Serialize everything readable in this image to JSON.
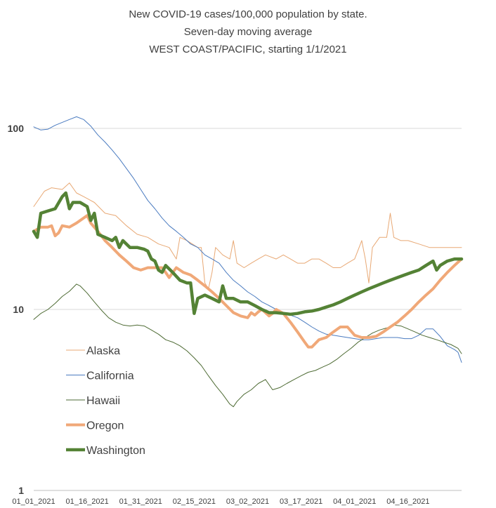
{
  "chart_data": {
    "type": "line",
    "title_lines": [
      "New COVID-19 cases/100,000 population by state.",
      "Seven-day moving average",
      "WEST COAST/PACIFIC, starting 1/1/2021"
    ],
    "y_scale": "log",
    "ylim": [
      1,
      100
    ],
    "y_ticks": [
      "1",
      "10",
      "100"
    ],
    "x_ticks": [
      "01_01_2021",
      "01_16_2021",
      "01_31_2021",
      "02_15_2021",
      "03_02_2021",
      "03_17_2021",
      "04_01_2021",
      "04_16_2021"
    ],
    "x_day_range": [
      0,
      120
    ],
    "grid": "horizontal",
    "legend_position": "left-bottom",
    "series": [
      {
        "name": "Alaska",
        "color": "#e8a874",
        "width": 1,
        "values": [
          [
            0,
            37
          ],
          [
            3,
            45
          ],
          [
            5,
            47
          ],
          [
            8,
            46
          ],
          [
            10,
            50
          ],
          [
            12,
            44
          ],
          [
            14,
            42
          ],
          [
            17,
            39
          ],
          [
            20,
            34
          ],
          [
            23,
            33
          ],
          [
            26,
            29
          ],
          [
            29,
            26
          ],
          [
            32,
            25
          ],
          [
            35,
            23
          ],
          [
            38,
            22
          ],
          [
            40,
            19
          ],
          [
            41,
            25
          ],
          [
            43,
            24
          ],
          [
            46,
            22
          ],
          [
            47,
            22
          ],
          [
            48,
            14
          ],
          [
            49,
            13
          ],
          [
            50,
            16
          ],
          [
            51,
            22
          ],
          [
            53,
            20
          ],
          [
            55,
            19
          ],
          [
            56,
            24
          ],
          [
            57,
            18
          ],
          [
            59,
            17
          ],
          [
            61,
            18
          ],
          [
            63,
            19
          ],
          [
            65,
            20
          ],
          [
            68,
            19
          ],
          [
            70,
            20
          ],
          [
            72,
            19
          ],
          [
            74,
            18
          ],
          [
            76,
            18
          ],
          [
            78,
            19
          ],
          [
            80,
            19
          ],
          [
            82,
            18
          ],
          [
            84,
            17
          ],
          [
            86,
            17
          ],
          [
            88,
            18
          ],
          [
            90,
            19
          ],
          [
            92,
            24
          ],
          [
            93,
            19
          ],
          [
            94,
            14
          ],
          [
            95,
            22
          ],
          [
            97,
            25
          ],
          [
            99,
            25
          ],
          [
            100,
            34
          ],
          [
            101,
            25
          ],
          [
            103,
            24
          ],
          [
            105,
            24
          ],
          [
            108,
            23
          ],
          [
            111,
            22
          ],
          [
            114,
            22
          ],
          [
            117,
            22
          ],
          [
            120,
            22
          ]
        ]
      },
      {
        "name": "California",
        "color": "#4a7bc0",
        "width": 1,
        "values": [
          [
            0,
            102
          ],
          [
            2,
            98
          ],
          [
            4,
            99
          ],
          [
            6,
            104
          ],
          [
            8,
            108
          ],
          [
            10,
            112
          ],
          [
            12,
            116
          ],
          [
            14,
            112
          ],
          [
            16,
            103
          ],
          [
            18,
            92
          ],
          [
            20,
            84
          ],
          [
            22,
            76
          ],
          [
            24,
            68
          ],
          [
            26,
            60
          ],
          [
            28,
            53
          ],
          [
            30,
            46
          ],
          [
            32,
            40
          ],
          [
            34,
            36
          ],
          [
            36,
            32
          ],
          [
            38,
            29
          ],
          [
            40,
            27
          ],
          [
            42,
            25
          ],
          [
            44,
            23
          ],
          [
            46,
            22
          ],
          [
            48,
            20
          ],
          [
            50,
            19
          ],
          [
            52,
            18
          ],
          [
            54,
            16
          ],
          [
            56,
            14.5
          ],
          [
            58,
            13.5
          ],
          [
            60,
            12.5
          ],
          [
            62,
            11.8
          ],
          [
            64,
            11
          ],
          [
            66,
            10.5
          ],
          [
            68,
            10
          ],
          [
            70,
            9.6
          ],
          [
            72,
            9.3
          ],
          [
            74,
            9
          ],
          [
            76,
            8.5
          ],
          [
            78,
            8
          ],
          [
            80,
            7.6
          ],
          [
            82,
            7.3
          ],
          [
            84,
            7.2
          ],
          [
            86,
            7.1
          ],
          [
            88,
            7
          ],
          [
            90,
            6.9
          ],
          [
            92,
            6.8
          ],
          [
            94,
            6.8
          ],
          [
            96,
            6.9
          ],
          [
            98,
            7
          ],
          [
            100,
            7
          ],
          [
            102,
            7
          ],
          [
            104,
            6.9
          ],
          [
            106,
            6.9
          ],
          [
            108,
            7.2
          ],
          [
            110,
            7.8
          ],
          [
            112,
            7.8
          ],
          [
            114,
            7.1
          ],
          [
            116,
            6.3
          ],
          [
            118,
            6
          ],
          [
            119,
            5.8
          ],
          [
            120,
            5.1
          ]
        ]
      },
      {
        "name": "Hawaii",
        "color": "#4e6b34",
        "width": 1,
        "values": [
          [
            0,
            8.8
          ],
          [
            2,
            9.5
          ],
          [
            4,
            10
          ],
          [
            6,
            10.8
          ],
          [
            8,
            11.8
          ],
          [
            10,
            12.6
          ],
          [
            12,
            13.8
          ],
          [
            13,
            13.5
          ],
          [
            15,
            12.3
          ],
          [
            17,
            11
          ],
          [
            19,
            9.9
          ],
          [
            21,
            9
          ],
          [
            23,
            8.5
          ],
          [
            25,
            8.2
          ],
          [
            27,
            8.1
          ],
          [
            29,
            8.2
          ],
          [
            31,
            8.1
          ],
          [
            33,
            7.7
          ],
          [
            35,
            7.3
          ],
          [
            37,
            6.8
          ],
          [
            39,
            6.6
          ],
          [
            41,
            6.3
          ],
          [
            43,
            5.9
          ],
          [
            45,
            5.4
          ],
          [
            47,
            4.9
          ],
          [
            49,
            4.3
          ],
          [
            51,
            3.8
          ],
          [
            53,
            3.4
          ],
          [
            55,
            3.0
          ],
          [
            56,
            2.9
          ],
          [
            57,
            3.1
          ],
          [
            59,
            3.4
          ],
          [
            61,
            3.6
          ],
          [
            63,
            3.9
          ],
          [
            65,
            4.1
          ],
          [
            67,
            3.6
          ],
          [
            69,
            3.7
          ],
          [
            71,
            3.9
          ],
          [
            73,
            4.1
          ],
          [
            75,
            4.3
          ],
          [
            77,
            4.5
          ],
          [
            79,
            4.6
          ],
          [
            81,
            4.8
          ],
          [
            83,
            5.0
          ],
          [
            85,
            5.3
          ],
          [
            87,
            5.7
          ],
          [
            89,
            6.1
          ],
          [
            91,
            6.6
          ],
          [
            93,
            7.0
          ],
          [
            95,
            7.4
          ],
          [
            97,
            7.7
          ],
          [
            99,
            7.9
          ],
          [
            101,
            8.2
          ],
          [
            103,
            8.1
          ],
          [
            105,
            7.8
          ],
          [
            107,
            7.5
          ],
          [
            109,
            7.2
          ],
          [
            111,
            7.0
          ],
          [
            113,
            6.8
          ],
          [
            115,
            6.6
          ],
          [
            117,
            6.4
          ],
          [
            119,
            6.1
          ],
          [
            120,
            5.7
          ]
        ]
      },
      {
        "name": "Oregon",
        "color": "#f0a878",
        "width": 4,
        "values": [
          [
            0,
            27
          ],
          [
            2,
            28.5
          ],
          [
            4,
            28.5
          ],
          [
            5,
            29
          ],
          [
            6,
            25.5
          ],
          [
            7,
            26.5
          ],
          [
            8,
            29
          ],
          [
            10,
            28.5
          ],
          [
            12,
            30
          ],
          [
            14,
            32
          ],
          [
            15,
            33
          ],
          [
            16,
            30
          ],
          [
            18,
            27
          ],
          [
            20,
            24
          ],
          [
            22,
            22
          ],
          [
            24,
            20
          ],
          [
            26,
            18.5
          ],
          [
            28,
            17
          ],
          [
            30,
            16.5
          ],
          [
            32,
            17
          ],
          [
            34,
            17
          ],
          [
            36,
            17
          ],
          [
            37,
            16
          ],
          [
            38,
            15
          ],
          [
            39,
            16
          ],
          [
            40,
            17
          ],
          [
            42,
            16
          ],
          [
            44,
            15.5
          ],
          [
            46,
            14.5
          ],
          [
            48,
            13.5
          ],
          [
            50,
            12.5
          ],
          [
            52,
            11.5
          ],
          [
            54,
            10.5
          ],
          [
            56,
            9.6
          ],
          [
            58,
            9.2
          ],
          [
            60,
            9.0
          ],
          [
            61,
            9.6
          ],
          [
            62,
            9.3
          ],
          [
            63,
            9.7
          ],
          [
            64,
            10
          ],
          [
            65,
            9.6
          ],
          [
            66,
            9.2
          ],
          [
            67,
            9.5
          ],
          [
            68,
            10.0
          ],
          [
            70,
            9.5
          ],
          [
            72,
            8.5
          ],
          [
            74,
            7.5
          ],
          [
            76,
            6.6
          ],
          [
            77,
            6.2
          ],
          [
            78,
            6.2
          ],
          [
            80,
            6.8
          ],
          [
            82,
            7.0
          ],
          [
            84,
            7.5
          ],
          [
            86,
            8.0
          ],
          [
            88,
            8.0
          ],
          [
            90,
            7.2
          ],
          [
            92,
            7.0
          ],
          [
            94,
            7.0
          ],
          [
            96,
            7.1
          ],
          [
            98,
            7.5
          ],
          [
            100,
            8.0
          ],
          [
            102,
            8.5
          ],
          [
            104,
            9.2
          ],
          [
            106,
            10.0
          ],
          [
            108,
            11.0
          ],
          [
            110,
            12.0
          ],
          [
            112,
            13.0
          ],
          [
            114,
            14.5
          ],
          [
            116,
            16.0
          ],
          [
            118,
            17.5
          ],
          [
            120,
            19.0
          ]
        ]
      },
      {
        "name": "Washington",
        "color": "#548235",
        "width": 4.5,
        "values": [
          [
            0,
            27
          ],
          [
            1,
            25
          ],
          [
            2,
            34
          ],
          [
            4,
            35
          ],
          [
            6,
            36
          ],
          [
            8,
            42
          ],
          [
            9,
            44
          ],
          [
            10,
            36
          ],
          [
            11,
            39
          ],
          [
            13,
            39
          ],
          [
            15,
            37
          ],
          [
            16,
            31
          ],
          [
            17,
            34
          ],
          [
            18,
            26
          ],
          [
            20,
            25
          ],
          [
            22,
            24
          ],
          [
            23,
            25
          ],
          [
            24,
            22
          ],
          [
            25,
            24
          ],
          [
            27,
            22
          ],
          [
            29,
            22
          ],
          [
            31,
            21.5
          ],
          [
            32,
            21
          ],
          [
            33,
            19
          ],
          [
            34,
            18.5
          ],
          [
            35,
            16.5
          ],
          [
            36,
            16
          ],
          [
            37,
            17.5
          ],
          [
            39,
            16
          ],
          [
            41,
            14.5
          ],
          [
            43,
            14
          ],
          [
            44,
            14
          ],
          [
            45,
            9.5
          ],
          [
            46,
            11.5
          ],
          [
            48,
            12
          ],
          [
            50,
            11.5
          ],
          [
            52,
            11
          ],
          [
            53,
            13.5
          ],
          [
            54,
            11.5
          ],
          [
            56,
            11.5
          ],
          [
            58,
            11
          ],
          [
            60,
            11
          ],
          [
            62,
            10.5
          ],
          [
            64,
            10
          ],
          [
            66,
            9.6
          ],
          [
            68,
            9.6
          ],
          [
            70,
            9.5
          ],
          [
            72,
            9.4
          ],
          [
            74,
            9.5
          ],
          [
            76,
            9.7
          ],
          [
            78,
            9.8
          ],
          [
            80,
            10
          ],
          [
            82,
            10.3
          ],
          [
            84,
            10.6
          ],
          [
            86,
            11.0
          ],
          [
            88,
            11.5
          ],
          [
            90,
            12.0
          ],
          [
            92,
            12.5
          ],
          [
            94,
            13.0
          ],
          [
            96,
            13.5
          ],
          [
            98,
            14.0
          ],
          [
            100,
            14.5
          ],
          [
            102,
            15.0
          ],
          [
            104,
            15.5
          ],
          [
            106,
            16.0
          ],
          [
            108,
            16.5
          ],
          [
            110,
            17.5
          ],
          [
            112,
            18.5
          ],
          [
            113,
            16.5
          ],
          [
            114,
            17.5
          ],
          [
            116,
            18.5
          ],
          [
            118,
            19.0
          ],
          [
            120,
            19.0
          ]
        ]
      }
    ]
  }
}
